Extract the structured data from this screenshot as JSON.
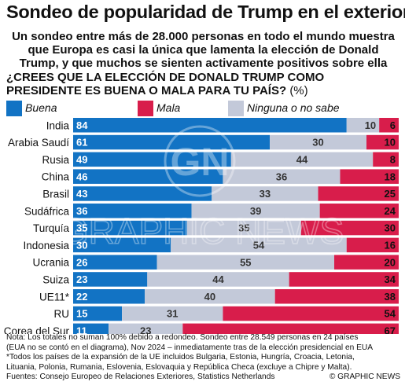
{
  "title": "Sondeo de popularidad de Trump en el exterior",
  "subtitle": "Un sondeo entre más de 28.000 personas en todo el mundo muestra que Europa es casi la única que lamenta la elección de Donald Trump, y que muchos se sienten activamente positivos sobre ella",
  "question": "¿CREES QUE LA ELECCIÓN DE DONALD TRUMP COMO PRESIDENTE ES BUENA O MALA PARA TU PAÍS?",
  "question_unit": "(%)",
  "watermark": {
    "monogram": "GN",
    "text": "GRAPHIC NEWS"
  },
  "notes": {
    "line1": "Nota: Los totales no suman 100% debido a redondeo. Sondeo entre 28.549 personas en 24 países",
    "line2": "(EUA no se contó en el diagrama), Nov 2024 – inmediatamente tras de la elección presidencial en EUA",
    "line3": "*Todos los países de la expansión de la UE incluidos Bulgaria, Estonia, Hungría, Croacia, Letonia,",
    "line4": "Lituania, Polonia, Rumania, Eslovenia, Eslovaquia y República Checa (excluye a Chipre y Malta).",
    "source": "Fuentes: Consejo Europeo de Relaciones Exteriores, Statistics Netherlands",
    "copyright": "© GRAPHIC NEWS"
  },
  "colors": {
    "good": "#1273c4",
    "none": "#c3c9d9",
    "bad": "#d81d4b"
  },
  "chart_data": {
    "type": "bar",
    "stacked": true,
    "orientation": "horizontal",
    "categories": [
      "India",
      "Arabia Saudí",
      "Rusia",
      "China",
      "Brasil",
      "Sudáfrica",
      "Turquía",
      "Indonesia",
      "Ucrania",
      "Suiza",
      "UE11*",
      "RU",
      "Corea del Sur"
    ],
    "series": [
      {
        "name": "Buena",
        "values": [
          84,
          61,
          49,
          46,
          43,
          36,
          35,
          30,
          26,
          23,
          22,
          15,
          11
        ]
      },
      {
        "name": "Ninguna o no sabe",
        "values": [
          10,
          30,
          44,
          36,
          33,
          39,
          35,
          54,
          55,
          44,
          40,
          31,
          23
        ]
      },
      {
        "name": "Mala",
        "values": [
          6,
          10,
          8,
          18,
          25,
          24,
          30,
          16,
          20,
          34,
          38,
          54,
          67
        ]
      }
    ],
    "legend_order": [
      "Buena",
      "Mala",
      "Ninguna o no sabe"
    ],
    "legend_position": "top",
    "xlim": [
      0,
      100
    ],
    "grid": false
  }
}
